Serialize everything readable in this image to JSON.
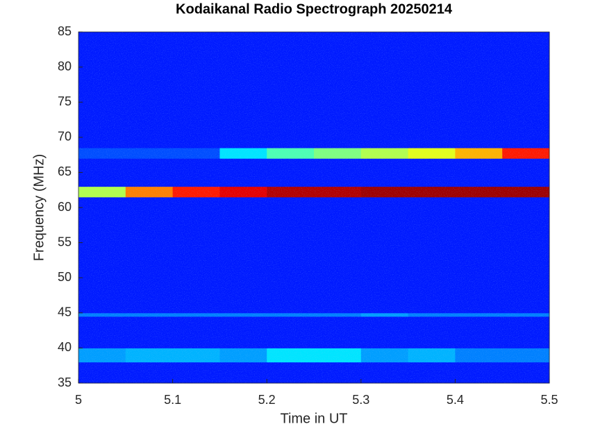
{
  "chart_data": {
    "type": "heatmap",
    "title": "Kodaikanal Radio Spectrograph  20250214",
    "x_label": "Time in UT",
    "y_label": "Frequency (MHz)",
    "x": [
      5.0,
      5.05,
      5.1,
      5.15,
      5.2,
      5.25,
      5.3,
      5.35,
      5.4,
      5.45,
      5.5
    ],
    "y": [
      35,
      38,
      40,
      44.5,
      45,
      61.5,
      63,
      67,
      68.5,
      85
    ],
    "z": [
      [
        0.15,
        0.15,
        0.15,
        0.15,
        0.15,
        0.15,
        0.15,
        0.15,
        0.15,
        0.15
      ],
      [
        0.28,
        0.3,
        0.3,
        0.28,
        0.35,
        0.35,
        0.28,
        0.3,
        0.25,
        0.25
      ],
      [
        0.15,
        0.15,
        0.15,
        0.15,
        0.15,
        0.15,
        0.15,
        0.15,
        0.15,
        0.15
      ],
      [
        0.25,
        0.25,
        0.25,
        0.25,
        0.25,
        0.25,
        0.28,
        0.25,
        0.25,
        0.25
      ],
      [
        0.15,
        0.15,
        0.15,
        0.15,
        0.15,
        0.15,
        0.15,
        0.15,
        0.15,
        0.15
      ],
      [
        0.55,
        0.75,
        0.85,
        0.9,
        0.95,
        0.95,
        0.97,
        0.97,
        0.97,
        0.97
      ],
      [
        0.15,
        0.15,
        0.15,
        0.15,
        0.15,
        0.15,
        0.15,
        0.15,
        0.15,
        0.15
      ],
      [
        0.2,
        0.2,
        0.2,
        0.35,
        0.45,
        0.5,
        0.55,
        0.6,
        0.7,
        0.85
      ],
      [
        0.15,
        0.15,
        0.15,
        0.15,
        0.15,
        0.15,
        0.15,
        0.15,
        0.15,
        0.15
      ]
    ],
    "colormap": "jet",
    "xlim": [
      5,
      5.5
    ],
    "ylim": [
      35,
      85
    ],
    "xticks": [
      5,
      5.1,
      5.2,
      5.3,
      5.4,
      5.5
    ],
    "yticks": [
      35,
      40,
      45,
      50,
      55,
      60,
      65,
      70,
      75,
      80,
      85
    ]
  }
}
